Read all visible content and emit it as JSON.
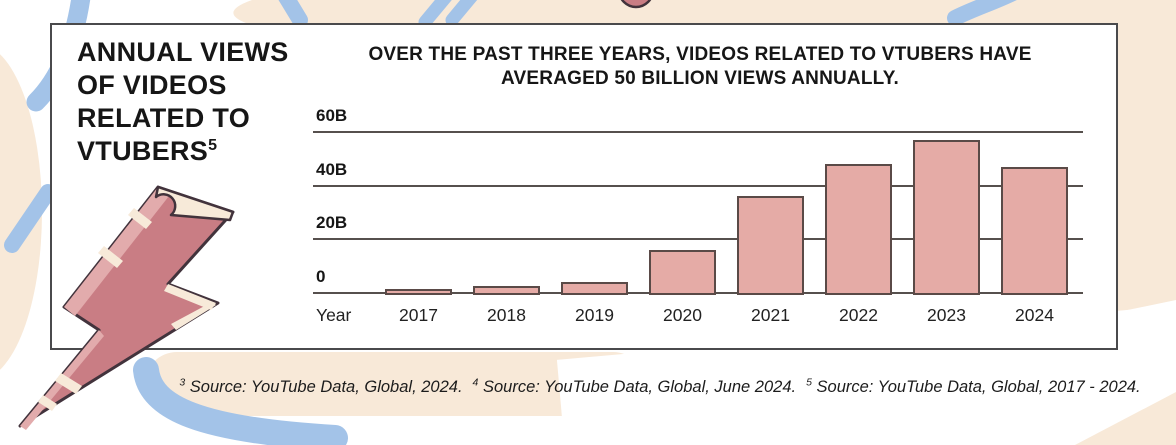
{
  "panel": {
    "title_line1": "ANNUAL VIEWS",
    "title_line2": "OF VIDEOS",
    "title_line3": "RELATED TO",
    "title_line4": "VTUBERS",
    "title_sup": "5"
  },
  "chart_data": {
    "type": "bar",
    "title": "OVER THE PAST THREE YEARS, VIDEOS RELATED TO VTUBERS HAVE AVERAGED 50 BILLION VIEWS ANNUALLY.",
    "categories": [
      "2017",
      "2018",
      "2019",
      "2020",
      "2021",
      "2022",
      "2023",
      "2024"
    ],
    "values": [
      1.5,
      2.5,
      4,
      16,
      36,
      48,
      57,
      47
    ],
    "unit": "billion views per year",
    "xlabel": "Year",
    "ylabel": "",
    "ylim": [
      0,
      60
    ],
    "yticks": [
      {
        "label": "60B",
        "value": 60
      },
      {
        "label": "40B",
        "value": 40
      },
      {
        "label": "20B",
        "value": 20
      },
      {
        "label": "0",
        "value": 0
      }
    ],
    "grid": true,
    "legend": "none",
    "bar_fill": "#e5aba6",
    "bar_border": "#5a4a47"
  },
  "footnotes": [
    {
      "sup": "3",
      "text": "Source: YouTube Data, Global, 2024."
    },
    {
      "sup": "4",
      "text": "Source: YouTube Data, Global, June 2024."
    },
    {
      "sup": "5",
      "text": "Source: YouTube Data, Global, 2017 - 2024."
    }
  ],
  "colors": {
    "accent_rose": "#c97d84",
    "rose_light": "#e2abac",
    "cream": "#f7ead9",
    "peach": "#f8e9d8",
    "blue": "#a3c3e8",
    "outline": "#42333c",
    "grid": "#56504d",
    "card_border": "#4a4a4c",
    "text": "#161616"
  }
}
